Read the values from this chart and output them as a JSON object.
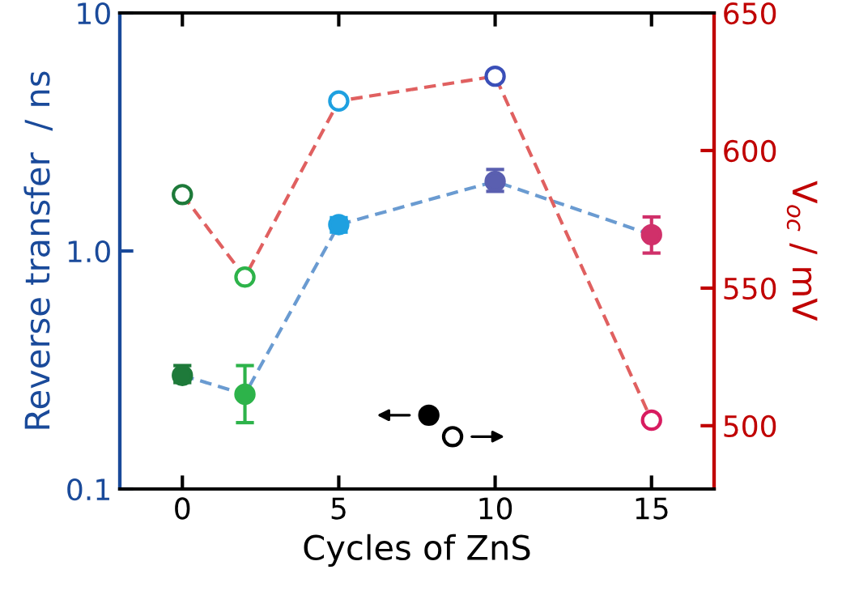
{
  "chart_data": {
    "type": "line",
    "xlabel": "Cycles of ZnS",
    "ylabel": "Reverse transfer  / ns",
    "y2label": "V$_{oc}$ / mV",
    "x": [
      0,
      2,
      5,
      10,
      15
    ],
    "xlim": [
      -2,
      17
    ],
    "xticks": [
      0,
      5,
      10,
      15
    ],
    "log": "y",
    "ylim": [
      0.1,
      10
    ],
    "yticks": [
      0.1,
      {
        "value": 1,
        "label": "1.0"
      },
      10
    ],
    "y2lim": [
      477,
      650
    ],
    "y2ticks": [
      500,
      550,
      600,
      650
    ],
    "marker": "circle",
    "line_style": "dashed",
    "grid": false,
    "series": [
      {
        "color": "#6a9bd1",
        "colors": [
          "#1e7a3a",
          "#2db34a",
          "#1ea0e0",
          "#5a5fb0",
          "#d0306a"
        ],
        "values": [
          0.3,
          0.25,
          1.29,
          1.96,
          1.17
        ],
        "errors": [
          [
            0.28,
            0.33
          ],
          [
            0.19,
            0.33
          ],
          [
            1.2,
            1.38
          ],
          [
            1.78,
            2.2
          ],
          [
            0.98,
            1.39
          ]
        ]
      },
      {
        "axis": "y2",
        "color": "#e06060",
        "colors": [
          "#1e7a3a",
          "#2db34a",
          "#1ea0e0",
          "#3a4fb8",
          "#d81b60"
        ],
        "values": [
          584,
          554,
          618,
          627,
          502
        ]
      }
    ]
  }
}
